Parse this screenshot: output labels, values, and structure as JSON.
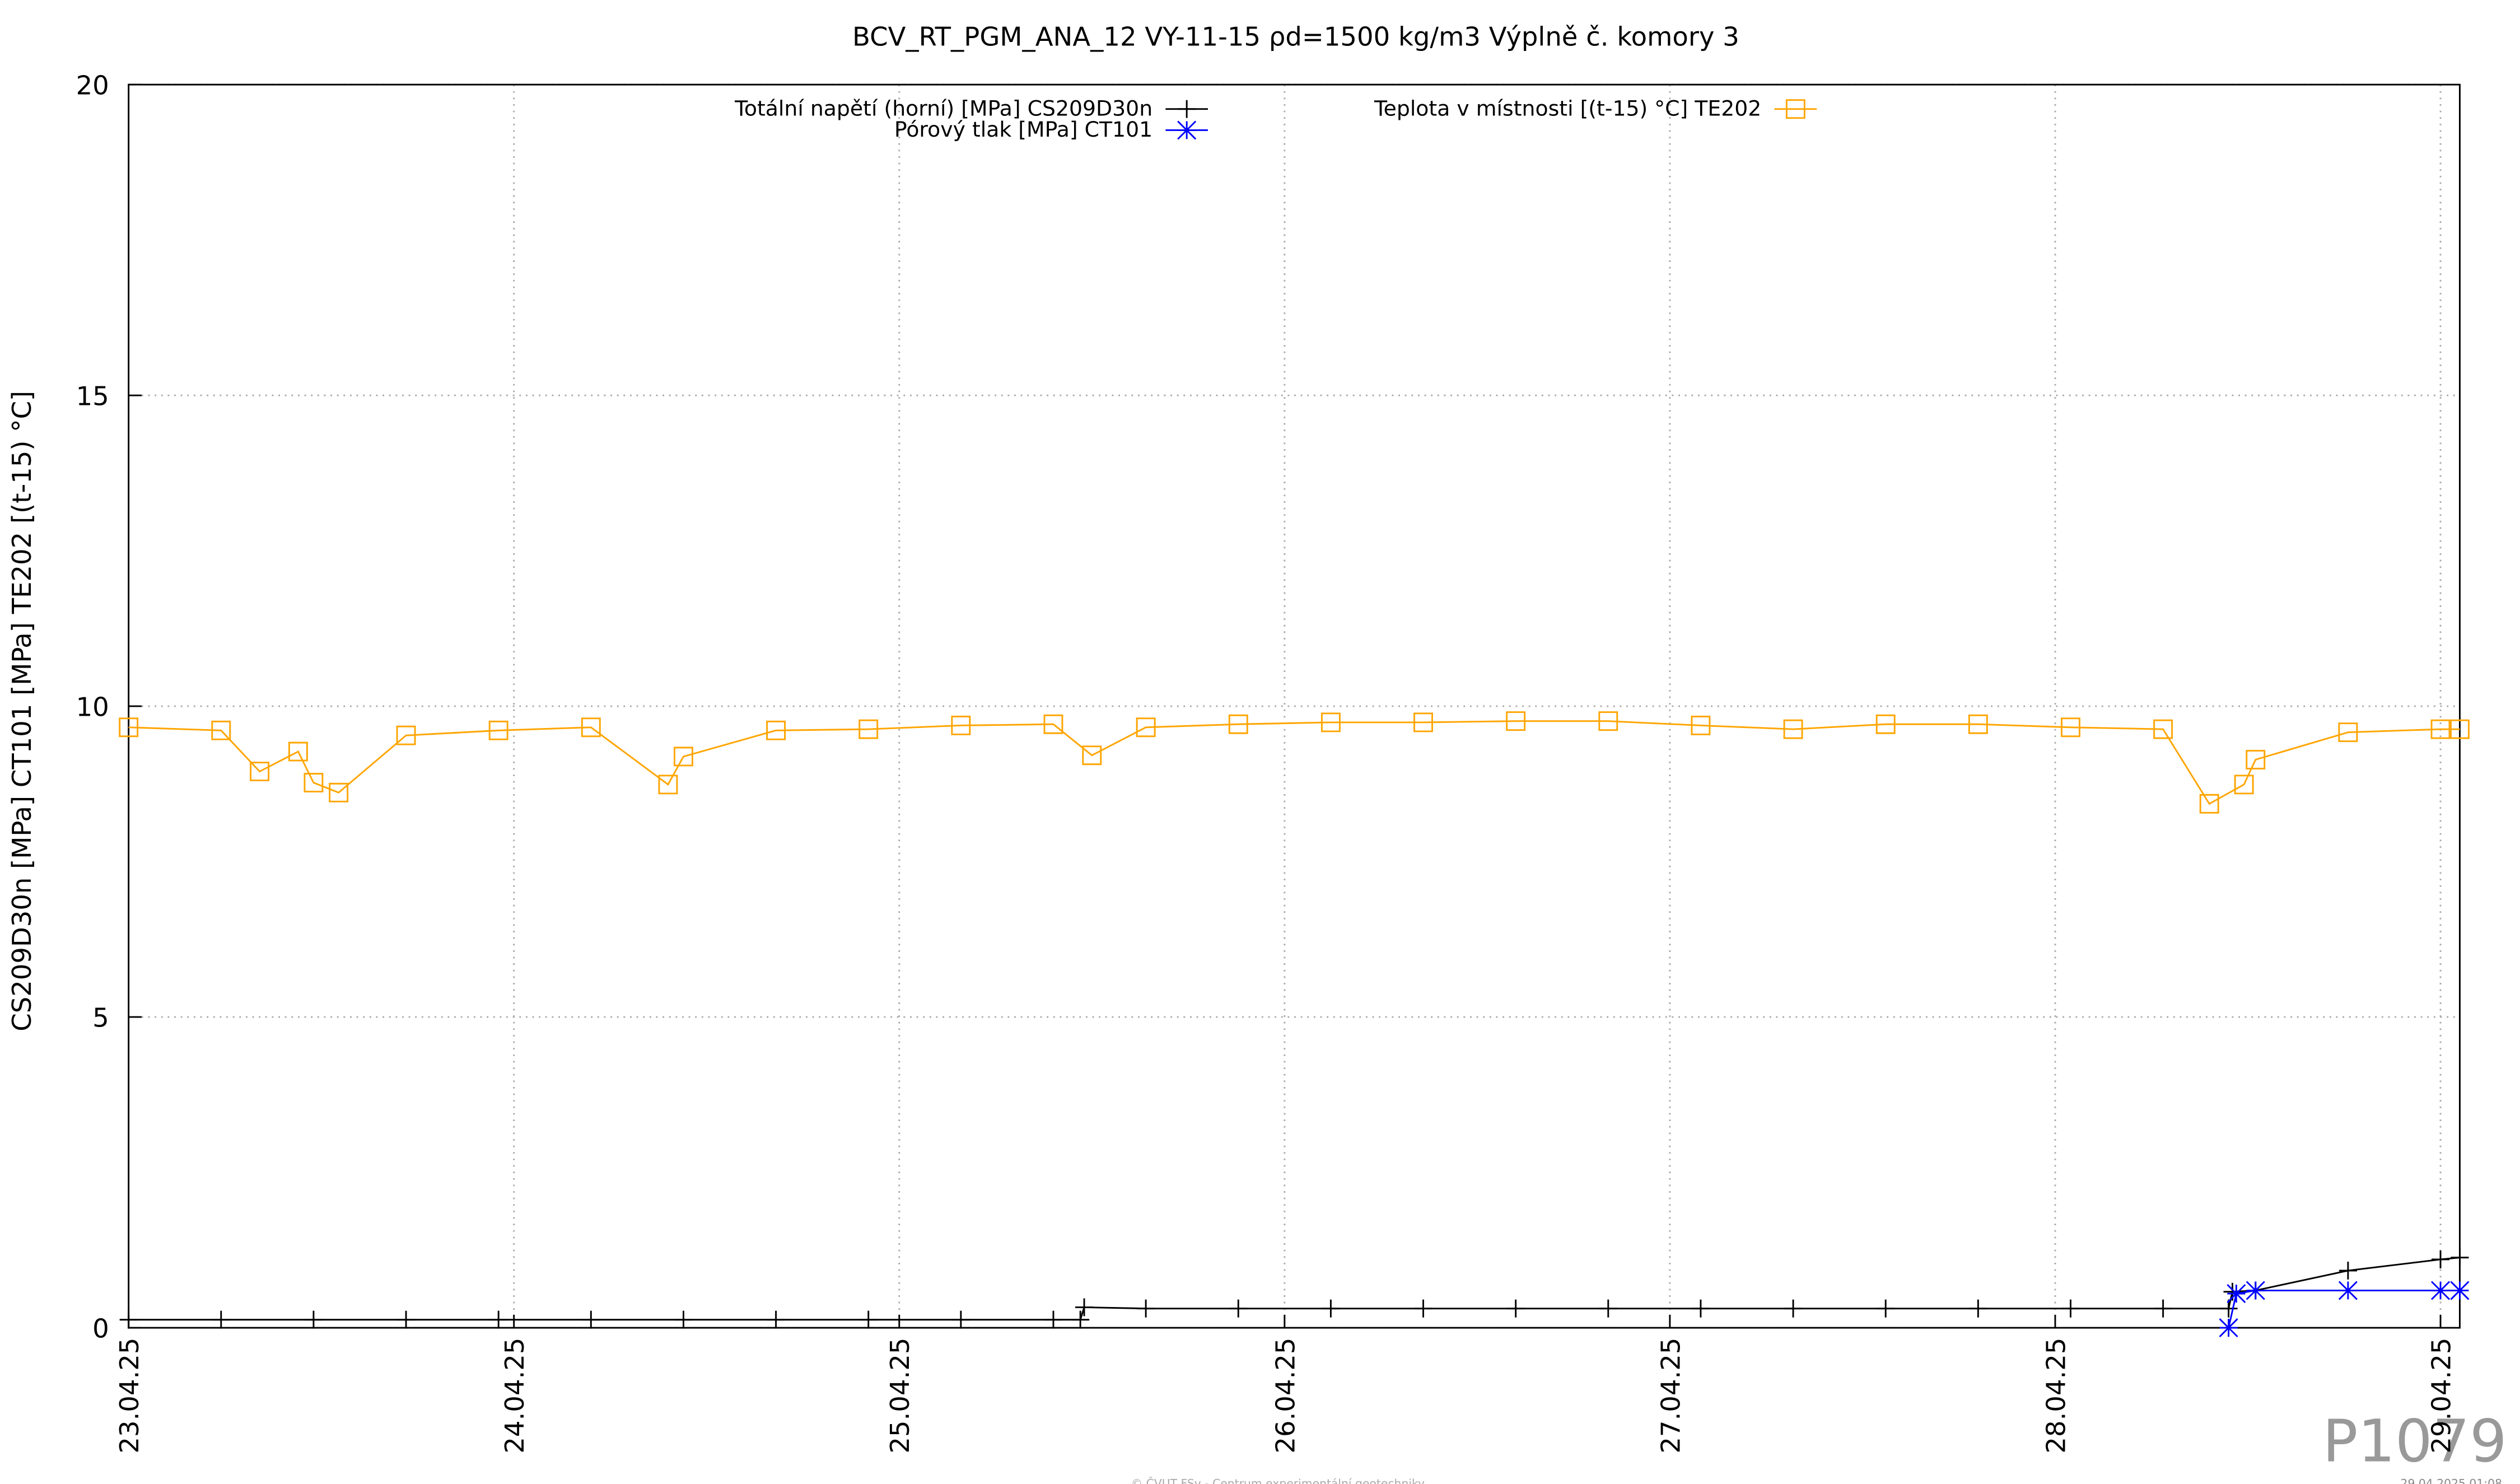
{
  "chart_data": {
    "type": "line",
    "title": "BCV_RT_PGM_ANA_12 VY-11-15 ρd=1500 kg/m3 Výplně č. komory 3",
    "ylabel": "CS209D30n [MPa] CT101 [MPa] TE202 [(t-15) °C]",
    "watermark": "P1079",
    "footer": "© ČVUT FSv - Centrum experimentální geotechniky",
    "timestamp": "29.04.2025 01:08",
    "xlim": [
      0,
      6.05
    ],
    "xticks": [
      {
        "value": 0,
        "label": "23.04.25"
      },
      {
        "value": 1,
        "label": "24.04.25"
      },
      {
        "value": 2,
        "label": "25.04.25"
      },
      {
        "value": 3,
        "label": "26.04.25"
      },
      {
        "value": 4,
        "label": "27.04.25"
      },
      {
        "value": 5,
        "label": "28.04.25"
      },
      {
        "value": 6,
        "label": "29.04.25"
      }
    ],
    "ylim": [
      0,
      20
    ],
    "yticks": [
      0,
      5,
      10,
      15,
      20
    ],
    "grid": true,
    "series": [
      {
        "name": "Totální napětí (horní) [MPa] CS209D30n",
        "color": "#000000",
        "marker": "plus",
        "x": [
          0,
          0.24,
          0.48,
          0.72,
          0.96,
          1.2,
          1.44,
          1.68,
          1.92,
          2.16,
          2.4,
          2.47,
          2.48,
          2.64,
          2.88,
          3.12,
          3.36,
          3.6,
          3.84,
          4.08,
          4.32,
          4.56,
          4.8,
          5.04,
          5.28,
          5.45,
          5.46,
          5.52,
          5.76,
          6.0,
          6.05
        ],
        "values": [
          0.13,
          0.13,
          0.13,
          0.13,
          0.13,
          0.13,
          0.13,
          0.13,
          0.13,
          0.13,
          0.13,
          0.13,
          0.33,
          0.31,
          0.31,
          0.31,
          0.31,
          0.31,
          0.31,
          0.31,
          0.31,
          0.31,
          0.31,
          0.31,
          0.31,
          0.31,
          0.58,
          0.6,
          0.92,
          1.1,
          1.13
        ]
      },
      {
        "name": "Pórový tlak [MPa] CT101",
        "color": "#0000ff",
        "marker": "star",
        "x": [
          5.45,
          5.47,
          5.52,
          5.76,
          6.0,
          6.05
        ],
        "values": [
          0,
          0.55,
          0.6,
          0.6,
          0.6,
          0.6
        ]
      },
      {
        "name": "Teplota v místnosti [(t-15) °C] TE202",
        "color": "#ffa500",
        "marker": "square",
        "x": [
          0,
          0.24,
          0.34,
          0.44,
          0.48,
          0.545,
          0.72,
          0.96,
          1.2,
          1.4,
          1.44,
          1.68,
          1.92,
          2.16,
          2.4,
          2.5,
          2.64,
          2.88,
          3.12,
          3.36,
          3.6,
          3.84,
          4.08,
          4.32,
          4.56,
          4.8,
          5.04,
          5.28,
          5.4,
          5.49,
          5.52,
          5.76,
          6.0,
          6.05
        ],
        "values": [
          9.66,
          9.61,
          8.95,
          9.27,
          8.77,
          8.61,
          9.53,
          9.61,
          9.66,
          8.74,
          9.19,
          9.61,
          9.63,
          9.69,
          9.71,
          9.21,
          9.66,
          9.71,
          9.74,
          9.74,
          9.76,
          9.76,
          9.69,
          9.63,
          9.71,
          9.71,
          9.66,
          9.63,
          8.43,
          8.74,
          9.14,
          9.58,
          9.63,
          9.63
        ]
      }
    ]
  }
}
